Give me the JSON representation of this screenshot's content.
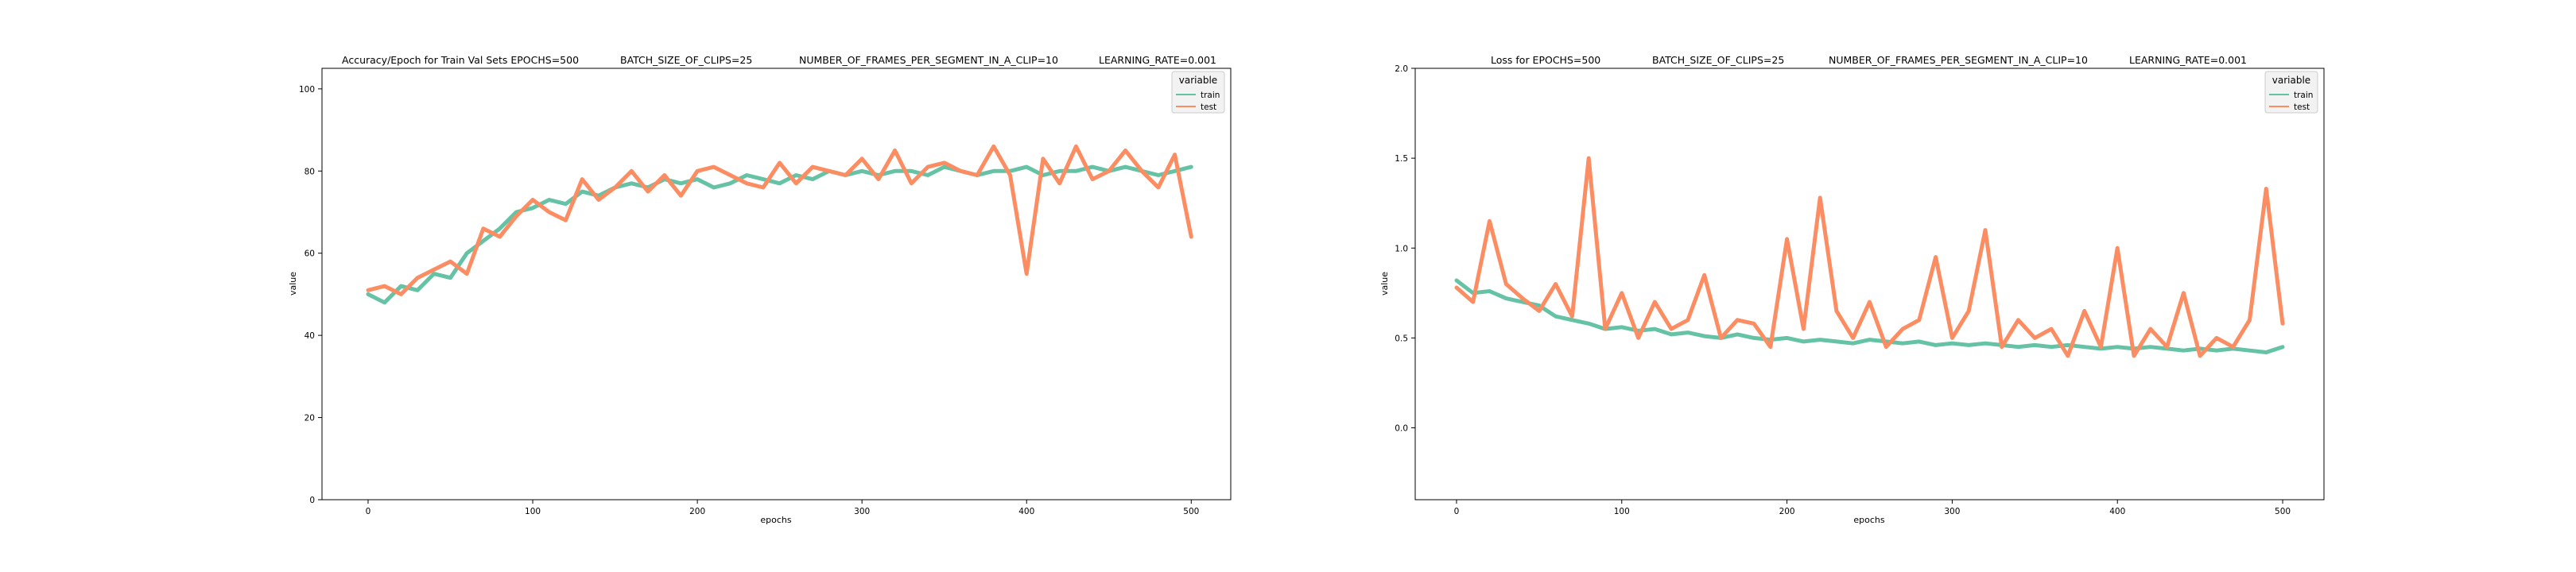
{
  "chart_data": [
    {
      "type": "line",
      "title_parts": [
        "Accuracy/Epoch for Train Val Sets EPOCHS=500",
        "BATCH_SIZE_OF_CLIPS=25",
        "NUMBER_OF_FRAMES_PER_SEGMENT_IN_A_CLIP=10",
        "LEARNING_RATE=0.001"
      ],
      "xlabel": "epochs",
      "ylabel": "value",
      "xlim": [
        -28,
        524
      ],
      "ylim": [
        0,
        105
      ],
      "xticks": [
        0,
        100,
        200,
        300,
        400,
        500
      ],
      "yticks": [
        0,
        20,
        40,
        60,
        80,
        100
      ],
      "grid": false,
      "legend": {
        "title": "variable",
        "position": "top-right",
        "entries": [
          "train",
          "test"
        ]
      },
      "x_step": 10,
      "series": [
        {
          "name": "train",
          "color": "#66c2a5",
          "values": [
            50,
            48,
            52,
            51,
            55,
            54,
            60,
            63,
            66,
            70,
            71,
            73,
            72,
            75,
            74,
            76,
            77,
            76,
            78,
            77,
            78,
            76,
            77,
            79,
            78,
            77,
            79,
            78,
            80,
            79,
            80,
            79,
            80,
            80,
            79,
            81,
            80,
            79,
            80,
            80,
            81,
            79,
            80,
            80,
            81,
            80,
            81,
            80,
            79,
            80,
            81
          ]
        },
        {
          "name": "test",
          "color": "#fc8d62",
          "values": [
            51,
            52,
            50,
            54,
            56,
            58,
            55,
            66,
            64,
            69,
            73,
            70,
            68,
            78,
            73,
            76,
            80,
            75,
            79,
            74,
            80,
            81,
            79,
            77,
            76,
            82,
            77,
            81,
            80,
            79,
            83,
            78,
            85,
            77,
            81,
            82,
            80,
            79,
            86,
            79,
            55,
            83,
            77,
            86,
            78,
            80,
            85,
            80,
            76,
            84,
            64
          ]
        }
      ]
    },
    {
      "type": "line",
      "title_parts": [
        "Loss for  EPOCHS=500",
        "BATCH_SIZE_OF_CLIPS=25",
        "NUMBER_OF_FRAMES_PER_SEGMENT_IN_A_CLIP=10",
        "LEARNING_RATE=0.001"
      ],
      "xlabel": "epochs",
      "ylabel": "value",
      "xlim": [
        -25,
        525
      ],
      "ylim": [
        -0.4,
        2.0
      ],
      "xticks": [
        0,
        100,
        200,
        300,
        400,
        500
      ],
      "yticks": [
        0.0,
        0.5,
        1.0,
        1.5,
        2.0
      ],
      "grid": false,
      "legend": {
        "title": "variable",
        "position": "top-right",
        "entries": [
          "train",
          "test"
        ]
      },
      "x_step": 10,
      "series": [
        {
          "name": "train",
          "color": "#66c2a5",
          "values": [
            0.82,
            0.75,
            0.76,
            0.72,
            0.7,
            0.68,
            0.62,
            0.6,
            0.58,
            0.55,
            0.56,
            0.54,
            0.55,
            0.52,
            0.53,
            0.51,
            0.5,
            0.52,
            0.5,
            0.49,
            0.5,
            0.48,
            0.49,
            0.48,
            0.47,
            0.49,
            0.48,
            0.47,
            0.48,
            0.46,
            0.47,
            0.46,
            0.47,
            0.46,
            0.45,
            0.46,
            0.45,
            0.46,
            0.45,
            0.44,
            0.45,
            0.44,
            0.45,
            0.44,
            0.43,
            0.44,
            0.43,
            0.44,
            0.43,
            0.42,
            0.45
          ]
        },
        {
          "name": "test",
          "color": "#fc8d62",
          "values": [
            0.78,
            0.7,
            1.15,
            0.8,
            0.72,
            0.65,
            0.8,
            0.62,
            1.5,
            0.55,
            0.75,
            0.5,
            0.7,
            0.55,
            0.6,
            0.85,
            0.5,
            0.6,
            0.58,
            0.45,
            1.05,
            0.55,
            1.28,
            0.65,
            0.5,
            0.7,
            0.45,
            0.55,
            0.6,
            0.95,
            0.5,
            0.65,
            1.1,
            0.45,
            0.6,
            0.5,
            0.55,
            0.4,
            0.65,
            0.45,
            1.0,
            0.4,
            0.55,
            0.45,
            0.75,
            0.4,
            0.5,
            0.45,
            0.6,
            1.33,
            0.58
          ]
        }
      ]
    }
  ]
}
